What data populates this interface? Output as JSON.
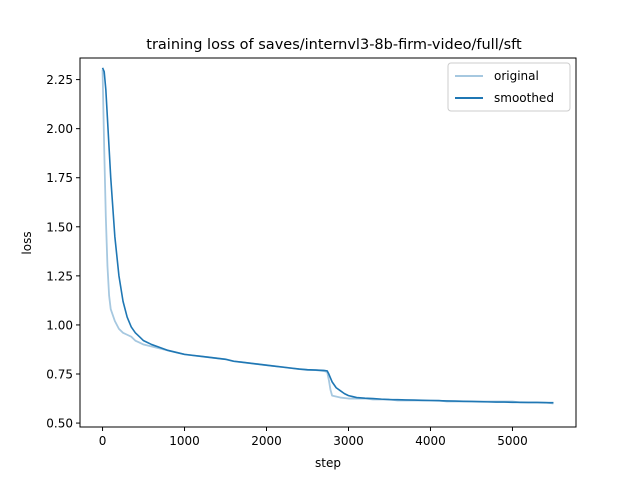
{
  "chart_data": {
    "type": "line",
    "title": "training loss of saves/internvl3-8b-firm-video/full/sft",
    "xlabel": "step",
    "ylabel": "loss",
    "xlim": [
      -275,
      5775
    ],
    "ylim": [
      0.48,
      2.36
    ],
    "xticks": [
      0,
      1000,
      2000,
      3000,
      4000,
      5000
    ],
    "xtick_labels": [
      "0",
      "1000",
      "2000",
      "3000",
      "4000",
      "5000"
    ],
    "yticks": [
      0.5,
      0.75,
      1.0,
      1.25,
      1.5,
      1.75,
      2.0,
      2.25
    ],
    "ytick_labels": [
      "0.50",
      "0.75",
      "1.00",
      "1.25",
      "1.50",
      "1.75",
      "2.00",
      "2.25"
    ],
    "grid": false,
    "legend_position": "top-right",
    "series": [
      {
        "name": "original",
        "color": "#a6c8e0",
        "x": [
          0,
          20,
          40,
          60,
          80,
          100,
          150,
          200,
          250,
          300,
          350,
          400,
          450,
          500,
          600,
          700,
          800,
          900,
          1000,
          1100,
          1200,
          1300,
          1400,
          1500,
          1600,
          1700,
          1800,
          1900,
          2000,
          2100,
          2200,
          2300,
          2400,
          2500,
          2600,
          2700,
          2740,
          2760,
          2780,
          2800,
          2900,
          3000,
          3100,
          3200,
          3300,
          3400,
          3500,
          3600,
          3700,
          3800,
          3900,
          4000,
          4100,
          4200,
          4300,
          4400,
          4500,
          4600,
          4700,
          4800,
          4900,
          5000,
          5100,
          5200,
          5300,
          5400,
          5500
        ],
        "y": [
          2.3,
          1.9,
          1.55,
          1.3,
          1.15,
          1.08,
          1.02,
          0.98,
          0.96,
          0.95,
          0.94,
          0.92,
          0.91,
          0.9,
          0.89,
          0.88,
          0.87,
          0.86,
          0.85,
          0.845,
          0.84,
          0.835,
          0.83,
          0.825,
          0.815,
          0.81,
          0.805,
          0.8,
          0.795,
          0.79,
          0.785,
          0.78,
          0.775,
          0.77,
          0.77,
          0.765,
          0.76,
          0.72,
          0.67,
          0.64,
          0.63,
          0.625,
          0.625,
          0.625,
          0.62,
          0.62,
          0.62,
          0.615,
          0.615,
          0.615,
          0.615,
          0.615,
          0.615,
          0.61,
          0.61,
          0.61,
          0.61,
          0.61,
          0.61,
          0.61,
          0.61,
          0.61,
          0.605,
          0.605,
          0.605,
          0.605,
          0.6
        ]
      },
      {
        "name": "smoothed",
        "color": "#1f77b4",
        "x": [
          0,
          20,
          40,
          60,
          80,
          100,
          150,
          200,
          250,
          300,
          350,
          400,
          450,
          500,
          600,
          700,
          800,
          900,
          1000,
          1100,
          1200,
          1300,
          1400,
          1500,
          1600,
          1700,
          1800,
          1900,
          2000,
          2100,
          2200,
          2300,
          2400,
          2500,
          2600,
          2700,
          2740,
          2760,
          2780,
          2800,
          2850,
          2900,
          2950,
          3000,
          3050,
          3100,
          3200,
          3300,
          3400,
          3500,
          3600,
          3700,
          3800,
          3900,
          4000,
          4100,
          4200,
          4300,
          4400,
          4500,
          4600,
          4700,
          4800,
          4900,
          5000,
          5100,
          5200,
          5300,
          5400,
          5500
        ],
        "y": [
          2.31,
          2.29,
          2.2,
          2.05,
          1.9,
          1.75,
          1.45,
          1.25,
          1.12,
          1.04,
          0.99,
          0.96,
          0.94,
          0.92,
          0.9,
          0.885,
          0.87,
          0.86,
          0.85,
          0.845,
          0.84,
          0.835,
          0.83,
          0.825,
          0.815,
          0.81,
          0.805,
          0.8,
          0.795,
          0.79,
          0.785,
          0.78,
          0.775,
          0.772,
          0.77,
          0.768,
          0.766,
          0.75,
          0.73,
          0.71,
          0.68,
          0.665,
          0.65,
          0.64,
          0.635,
          0.63,
          0.627,
          0.625,
          0.622,
          0.62,
          0.619,
          0.618,
          0.617,
          0.616,
          0.615,
          0.614,
          0.613,
          0.612,
          0.611,
          0.61,
          0.609,
          0.608,
          0.607,
          0.607,
          0.606,
          0.606,
          0.605,
          0.605,
          0.604,
          0.604
        ]
      }
    ]
  }
}
